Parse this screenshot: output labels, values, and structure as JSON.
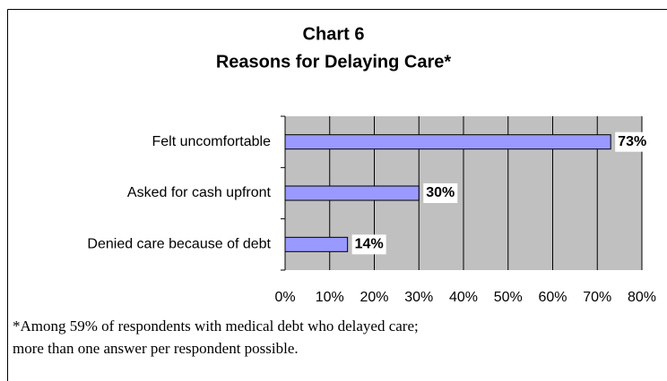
{
  "chart_data": {
    "type": "hbar",
    "title": "Chart 6",
    "subtitle": "Reasons for Delaying Care*",
    "categories": [
      "Felt uncomfortable",
      "Asked for cash upfront",
      "Denied care because of debt"
    ],
    "values": [
      73,
      30,
      14
    ],
    "value_labels": [
      "73%",
      "30%",
      "14%"
    ],
    "color": "#9999ff",
    "xlim": [
      0,
      80
    ],
    "xticks": [
      {
        "value": 0,
        "label": "0%"
      },
      {
        "value": 10,
        "label": "10%"
      },
      {
        "value": 20,
        "label": "20%"
      },
      {
        "value": 30,
        "label": "30%"
      },
      {
        "value": 40,
        "label": "40%"
      },
      {
        "value": 50,
        "label": "50%"
      },
      {
        "value": 60,
        "label": "60%"
      },
      {
        "value": 70,
        "label": "70%"
      },
      {
        "value": 80,
        "label": "80%"
      }
    ],
    "grid": true,
    "note": [
      "*Among 59% of respondents with medical debt who delayed care;",
      "more than one answer per respondent possible."
    ]
  }
}
